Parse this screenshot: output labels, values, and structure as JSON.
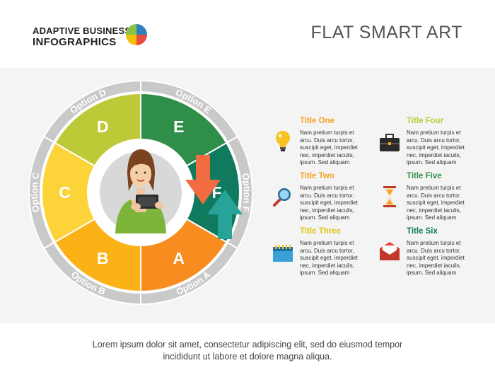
{
  "logo": {
    "line1": "ADAPTIVE BUSINESS",
    "line2": "INFOGRAPHICS"
  },
  "title": "FLAT SMART ART",
  "wheel": {
    "segments": [
      {
        "letter": "A",
        "option": "Option A",
        "color": "#f98c1e"
      },
      {
        "letter": "B",
        "option": "Option B",
        "color": "#fbb217"
      },
      {
        "letter": "C",
        "option": "Option C",
        "color": "#fcd43a"
      },
      {
        "letter": "D",
        "option": "Option D",
        "color": "#bdca37"
      },
      {
        "letter": "E",
        "option": "Option E",
        "color": "#2f8e48"
      },
      {
        "letter": "F",
        "option": "Option F",
        "color": "#0f7a5e"
      }
    ]
  },
  "arrows": {
    "down_color": "#f26b41",
    "up_color": "#27a398"
  },
  "items": [
    {
      "title": "Title One",
      "color": "#f7a11f",
      "icon": "lightbulb-icon",
      "lines": [
        "Nam pretium turpis et",
        "arcu. Duis arcu tortor,",
        "suscipit eget, imperdiet",
        "nec, imperdiet iaculis,",
        "ipsum. Sed aliquam"
      ]
    },
    {
      "title": "Title Two",
      "color": "#f7a11f",
      "icon": "magnifier-icon",
      "lines": [
        "Nam pretium turpis et",
        "arcu. Duis arcu tortor,",
        "suscipit eget, imperdiet",
        "nec, imperdiet iaculis,",
        "ipsum. Sed aliquam"
      ]
    },
    {
      "title": "Title Three",
      "color": "#e0c515",
      "icon": "calendar-icon",
      "lines": [
        "Nam pretium turpis et",
        "arcu. Duis arcu tortor,",
        "suscipit eget, imperdiet",
        "nec, imperdiet iaculis,",
        "ipsum. Sed aliquam"
      ]
    },
    {
      "title": "Title Four",
      "color": "#bdca37",
      "icon": "briefcase-icon",
      "lines": [
        "Nam pretium turpis et",
        "arcu. Duis arcu tortor,",
        "suscipit eget, imperdiet",
        "nec, imperdiet iaculis,",
        "ipsum. Sed aliquam"
      ]
    },
    {
      "title": "Title Five",
      "color": "#2f8e48",
      "icon": "hourglass-icon",
      "lines": [
        "Nam pretium turpis et",
        "arcu. Duis arcu tortor,",
        "suscipit eget, imperdiet",
        "nec, imperdiet iaculis,",
        "ipsum. Sed aliquam"
      ]
    },
    {
      "title": "Title Six",
      "color": "#0f7a5e",
      "icon": "envelope-icon",
      "lines": [
        "Nam pretium turpis et",
        "arcu. Duis arcu tortor,",
        "suscipit eget, imperdiet",
        "nec, imperdiet iaculis,",
        "ipsum. Sed aliquam"
      ]
    }
  ],
  "footer": {
    "line1": "Lorem ipsum dolor sit amet, consectetur adipiscing elit, sed do eiusmod tempor",
    "line2": "incididunt ut labore et dolore magna aliqua."
  }
}
